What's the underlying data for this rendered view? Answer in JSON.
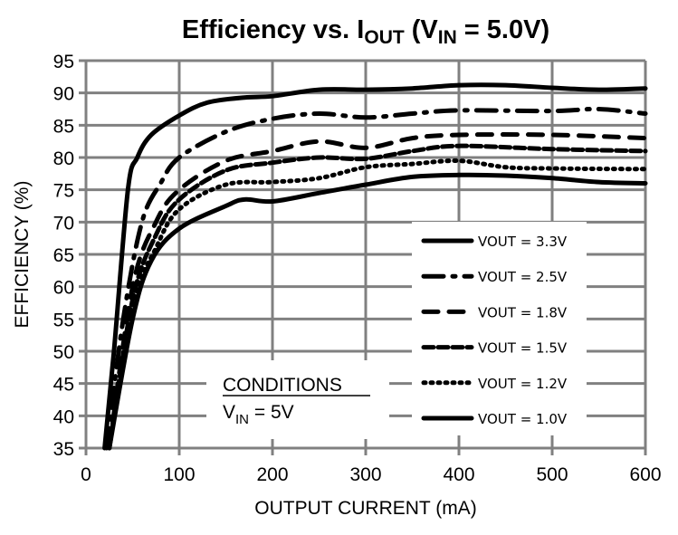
{
  "chart_data": {
    "type": "line",
    "title": "Efficiency vs. I",
    "title_sub": "OUT",
    "title_rest": " (V",
    "title_sub2": "IN",
    "title_end": " = 5.0V)",
    "xlabel": "OUTPUT CURRENT (mA)",
    "ylabel": "EFFICIENCY (%)",
    "xlim": [
      0,
      600
    ],
    "ylim": [
      35,
      95
    ],
    "xticks": [
      "0",
      "100",
      "200",
      "300",
      "400",
      "500",
      "600"
    ],
    "yticks": [
      "35",
      "40",
      "45",
      "50",
      "55",
      "60",
      "65",
      "70",
      "75",
      "80",
      "85",
      "90",
      "95"
    ],
    "grid": true,
    "legend_position": "bottom-right",
    "annotation": {
      "heading": "CONDITIONS",
      "line_main": "V",
      "line_sub": "IN",
      "line_rest": " = 5V"
    },
    "series": [
      {
        "name": "VOUT = 3.3V",
        "style": "solid",
        "x": [
          20,
          30,
          45,
          55,
          70,
          100,
          130,
          170,
          200,
          250,
          300,
          350,
          400,
          450,
          500,
          550,
          600
        ],
        "y": [
          35,
          50,
          75,
          80,
          83.5,
          86.5,
          88.5,
          89.3,
          89.5,
          90.5,
          90.5,
          90.7,
          91.2,
          91.2,
          90.8,
          90.5,
          90.7
        ]
      },
      {
        "name": "VOUT = 2.5V",
        "style": "long-dash-dot",
        "x": [
          22,
          40,
          60,
          80,
          100,
          150,
          200,
          250,
          300,
          350,
          400,
          500,
          550,
          600
        ],
        "y": [
          35,
          55,
          70,
          76,
          80,
          84,
          86,
          86.8,
          86.2,
          86.8,
          87.3,
          87.2,
          87.5,
          86.8
        ]
      },
      {
        "name": "VOUT = 1.8V",
        "style": "medium-dash",
        "x": [
          25,
          50,
          75,
          100,
          150,
          200,
          250,
          300,
          350,
          400,
          500,
          600
        ],
        "y": [
          35,
          60,
          70,
          75,
          79.5,
          81,
          82.5,
          81.5,
          83,
          83.5,
          83.5,
          83
        ]
      },
      {
        "name": "VOUT = 1.5V",
        "style": "short-dash",
        "x": [
          25,
          50,
          75,
          100,
          150,
          200,
          250,
          300,
          350,
          400,
          500,
          600
        ],
        "y": [
          35,
          58,
          68,
          73.5,
          78,
          79.2,
          80,
          79.8,
          81,
          81.8,
          81.3,
          81
        ]
      },
      {
        "name": "VOUT = 1.2V",
        "style": "dotted",
        "x": [
          25,
          50,
          75,
          100,
          150,
          200,
          250,
          300,
          350,
          400,
          450,
          500,
          600
        ],
        "y": [
          35,
          57,
          66,
          72,
          75.8,
          76.2,
          76.8,
          78.5,
          79,
          79.5,
          78.5,
          78.3,
          78.2
        ]
      },
      {
        "name": "VOUT = 1.0V",
        "style": "solid",
        "x": [
          25,
          50,
          70,
          100,
          150,
          170,
          200,
          250,
          300,
          350,
          400,
          450,
          500,
          550,
          600
        ],
        "y": [
          35,
          55,
          64,
          69,
          72.5,
          73.5,
          73.2,
          74.5,
          75.8,
          77,
          77.3,
          77.2,
          76.8,
          76.2,
          76
        ]
      }
    ],
    "colors": {
      "line": "#000000",
      "grid": "#808080",
      "background": "#ffffff"
    }
  }
}
